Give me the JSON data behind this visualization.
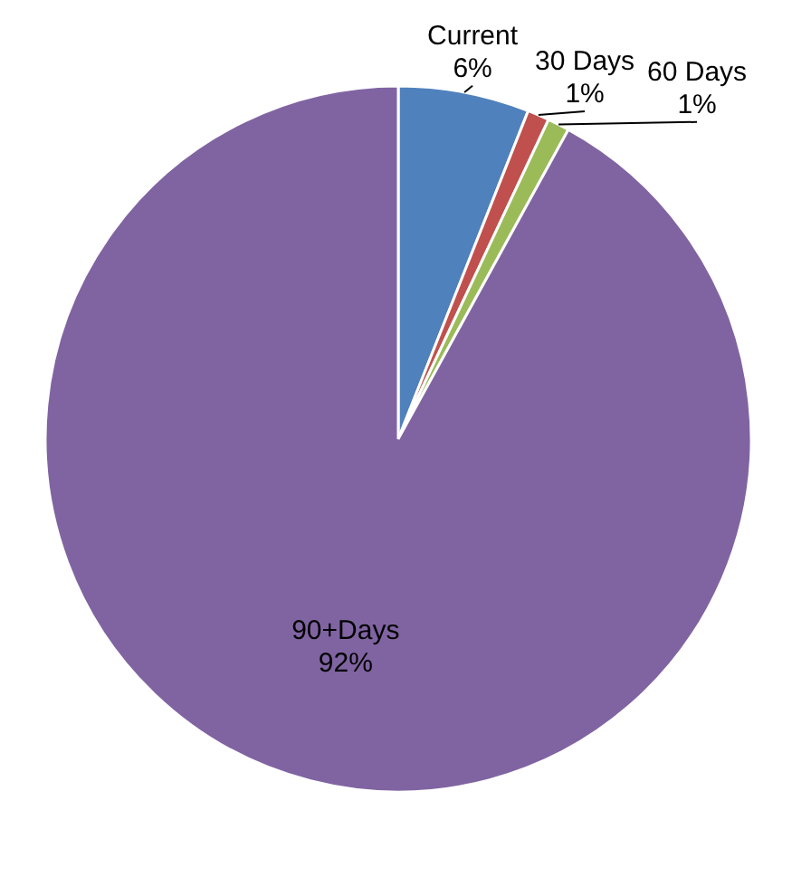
{
  "chart_data": {
    "type": "pie",
    "categories": [
      "Current",
      "30 Days",
      "60 Days",
      "90+Days"
    ],
    "values": [
      6,
      1,
      1,
      92
    ],
    "value_labels": [
      "6%",
      "1%",
      "1%",
      "92%"
    ],
    "colors": [
      "#4f81bd",
      "#c0504d",
      "#9bbb59",
      "#8064a2"
    ]
  }
}
